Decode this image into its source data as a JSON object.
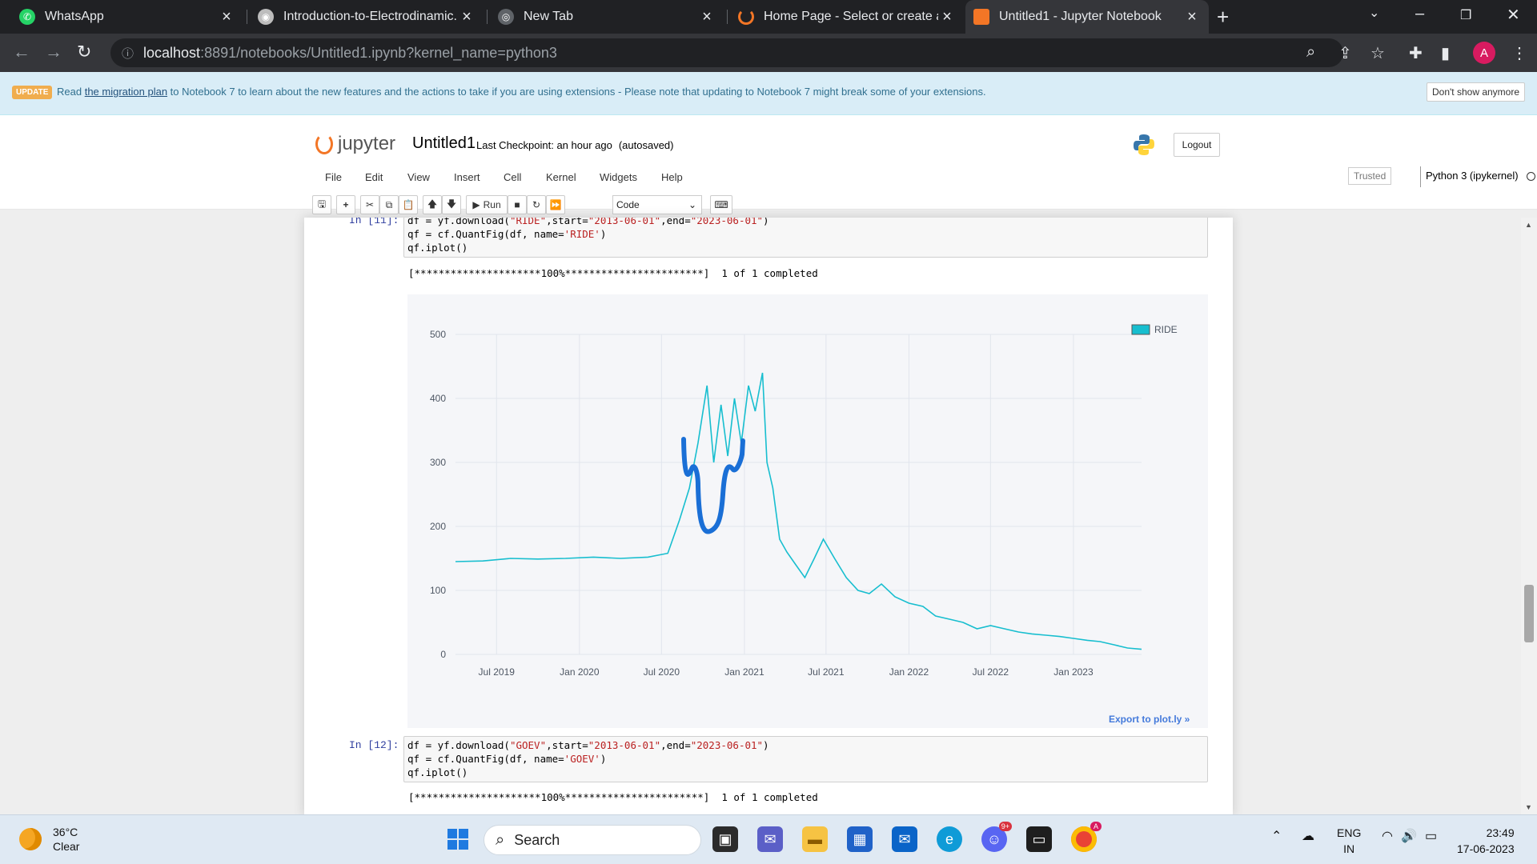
{
  "browser": {
    "tabs": [
      {
        "title": "WhatsApp",
        "icon": "whatsapp-icon",
        "active": false
      },
      {
        "title": "Introduction-to-Electrodinamic.p",
        "icon": "pdf-icon",
        "active": false
      },
      {
        "title": "New Tab",
        "icon": "chrome-icon",
        "active": false
      },
      {
        "title": "Home Page - Select or create a n",
        "icon": "jupyter-icon",
        "active": false
      },
      {
        "title": "Untitled1 - Jupyter Notebook",
        "icon": "notebook-icon",
        "active": true
      }
    ],
    "url_host": "localhost",
    "url_path": ":8891/notebooks/Untitled1.ipynb?kernel_name=python3",
    "profile_initial": "A"
  },
  "banner": {
    "badge": "UPDATE",
    "text_before": "Read ",
    "link": "the migration plan",
    "text_after": " to Notebook 7 to learn about the new features and the actions to take if you are using extensions - Please note that updating to Notebook 7 might break some of your extensions.",
    "dismiss": "Don't show anymore"
  },
  "jupyter": {
    "logo": "jupyter",
    "notebook_name": "Untitled1",
    "checkpoint": "Last Checkpoint: an hour ago",
    "autosaved": "(autosaved)",
    "logout": "Logout",
    "menus": [
      "File",
      "Edit",
      "View",
      "Insert",
      "Cell",
      "Kernel",
      "Widgets",
      "Help"
    ],
    "trusted": "Trusted",
    "kernel": "Python 3 (ipykernel)",
    "run_label": "Run",
    "cell_type": "Code"
  },
  "cells": [
    {
      "prompt": "In [11]:",
      "code": {
        "l1a": "df = yf.download(",
        "l1s1": "\"RIDE\"",
        "l1b": ",start=",
        "l1s2": "\"2013-06-01\"",
        "l1c": ",end=",
        "l1s3": "\"2023-06-01\"",
        "l1d": ")",
        "l2a": "qf = cf.QuantFig(df, name=",
        "l2s": "'RIDE'",
        "l2b": ")",
        "l3": "qf.iplot()"
      },
      "output": "[*********************100%***********************]  1 of 1 completed",
      "export": "Export to plot.ly »"
    },
    {
      "prompt": "In [12]:",
      "code": {
        "l1a": "df = yf.download(",
        "l1s1": "\"GOEV\"",
        "l1b": ",start=",
        "l1s2": "\"2013-06-01\"",
        "l1c": ",end=",
        "l1s3": "\"2023-06-01\"",
        "l1d": ")",
        "l2a": "qf = cf.QuantFig(df, name=",
        "l2s": "'GOEV'",
        "l2b": ")",
        "l3": "qf.iplot()"
      },
      "output": "[*********************100%***********************]  1 of 1 completed"
    }
  ],
  "chart_data": {
    "type": "line",
    "title": "",
    "legend": [
      "RIDE"
    ],
    "legend_position": "top-right",
    "xlabel": "",
    "ylabel": "",
    "x_ticks": [
      "Jul 2019",
      "Jan 2020",
      "Jul 2020",
      "Jan 2021",
      "Jul 2021",
      "Jan 2022",
      "Jul 2022",
      "Jan 2023"
    ],
    "y_ticks": [
      0,
      100,
      200,
      300,
      400,
      500
    ],
    "ylim": [
      0,
      500
    ],
    "xlim": [
      "2019-04-01",
      "2023-06-01"
    ],
    "grid": true,
    "series": [
      {
        "name": "RIDE",
        "color": "#17becf",
        "x": [
          "2019-04-01",
          "2019-06-01",
          "2019-08-01",
          "2019-10-01",
          "2019-12-01",
          "2020-02-01",
          "2020-04-01",
          "2020-06-01",
          "2020-07-15",
          "2020-08-10",
          "2020-09-01",
          "2020-09-20",
          "2020-10-10",
          "2020-10-25",
          "2020-11-10",
          "2020-11-25",
          "2020-12-10",
          "2020-12-25",
          "2021-01-10",
          "2021-01-25",
          "2021-02-10",
          "2021-02-20",
          "2021-03-05",
          "2021-03-20",
          "2021-04-05",
          "2021-04-25",
          "2021-05-15",
          "2021-06-05",
          "2021-06-25",
          "2021-07-20",
          "2021-08-15",
          "2021-09-10",
          "2021-10-05",
          "2021-11-01",
          "2021-12-01",
          "2022-01-01",
          "2022-02-01",
          "2022-03-01",
          "2022-04-01",
          "2022-05-01",
          "2022-06-01",
          "2022-07-01",
          "2022-08-01",
          "2022-09-01",
          "2022-10-01",
          "2022-11-01",
          "2022-12-01",
          "2023-01-01",
          "2023-02-01",
          "2023-03-01",
          "2023-04-01",
          "2023-05-01",
          "2023-06-01"
        ],
        "values": [
          145,
          146,
          150,
          149,
          150,
          152,
          150,
          152,
          158,
          210,
          260,
          330,
          420,
          300,
          390,
          310,
          400,
          330,
          420,
          380,
          440,
          300,
          260,
          180,
          160,
          140,
          120,
          150,
          180,
          150,
          120,
          100,
          95,
          110,
          90,
          80,
          75,
          60,
          55,
          50,
          40,
          45,
          40,
          35,
          32,
          30,
          28,
          25,
          22,
          20,
          15,
          10,
          8
        ]
      }
    ]
  },
  "taskbar": {
    "temp": "36°C",
    "condition": "Clear",
    "search": "Search",
    "lang1": "ENG",
    "lang2": "IN",
    "time": "23:49",
    "date": "17-06-2023",
    "discord_badge": "9+",
    "chrome_badge": "A"
  }
}
